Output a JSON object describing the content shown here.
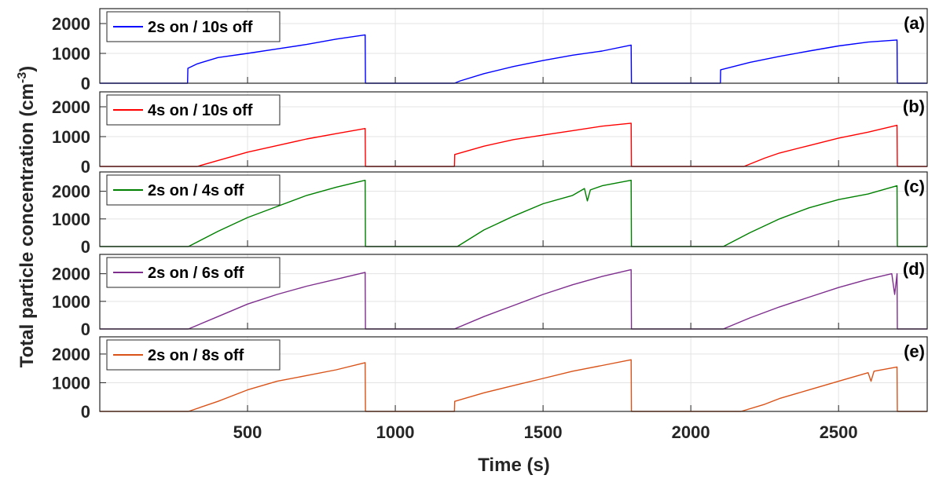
{
  "chart_data": {
    "type": "line",
    "xlabel": "Time (s)",
    "ylabel_main": "Total particle concentration (cm",
    "ylabel_sup": "-3",
    "ylabel_close": ")",
    "xlim": [
      0,
      2800
    ],
    "xticks": [
      500,
      1000,
      1500,
      2000,
      2500
    ],
    "grid": true,
    "legend_position": "top-left",
    "panels": [
      {
        "tag": "(a)",
        "series_name": "2s on / 10s off",
        "color": "#0000ff",
        "ylim": [
          0,
          2500
        ],
        "yticks": [
          0,
          1000,
          2000
        ],
        "points": [
          [
            0,
            0
          ],
          [
            297,
            0
          ],
          [
            298,
            500
          ],
          [
            330,
            650
          ],
          [
            400,
            860
          ],
          [
            500,
            1000
          ],
          [
            600,
            1150
          ],
          [
            700,
            1300
          ],
          [
            800,
            1480
          ],
          [
            898,
            1620
          ],
          [
            899,
            0
          ],
          [
            1200,
            0
          ],
          [
            1220,
            80
          ],
          [
            1300,
            320
          ],
          [
            1400,
            560
          ],
          [
            1500,
            760
          ],
          [
            1600,
            940
          ],
          [
            1700,
            1080
          ],
          [
            1798,
            1280
          ],
          [
            1799,
            0
          ],
          [
            2100,
            0
          ],
          [
            2101,
            450
          ],
          [
            2200,
            700
          ],
          [
            2300,
            900
          ],
          [
            2400,
            1080
          ],
          [
            2500,
            1250
          ],
          [
            2600,
            1380
          ],
          [
            2698,
            1450
          ],
          [
            2699,
            0
          ],
          [
            2800,
            0
          ]
        ]
      },
      {
        "tag": "(b)",
        "series_name": "4s on / 10s off",
        "color": "#ff0000",
        "ylim": [
          0,
          2500
        ],
        "yticks": [
          0,
          1000,
          2000
        ],
        "points": [
          [
            0,
            0
          ],
          [
            330,
            0
          ],
          [
            400,
            200
          ],
          [
            500,
            480
          ],
          [
            600,
            700
          ],
          [
            700,
            920
          ],
          [
            800,
            1100
          ],
          [
            898,
            1270
          ],
          [
            899,
            0
          ],
          [
            1200,
            0
          ],
          [
            1201,
            400
          ],
          [
            1300,
            680
          ],
          [
            1400,
            900
          ],
          [
            1500,
            1050
          ],
          [
            1600,
            1200
          ],
          [
            1700,
            1350
          ],
          [
            1798,
            1450
          ],
          [
            1799,
            0
          ],
          [
            2180,
            0
          ],
          [
            2250,
            280
          ],
          [
            2300,
            450
          ],
          [
            2400,
            700
          ],
          [
            2500,
            950
          ],
          [
            2600,
            1150
          ],
          [
            2698,
            1380
          ],
          [
            2699,
            0
          ],
          [
            2800,
            0
          ]
        ]
      },
      {
        "tag": "(c)",
        "series_name": "2s on / 4s off",
        "color": "#008000",
        "ylim": [
          0,
          2700
        ],
        "yticks": [
          0,
          1000,
          2000
        ],
        "points": [
          [
            0,
            0
          ],
          [
            300,
            0
          ],
          [
            400,
            550
          ],
          [
            500,
            1050
          ],
          [
            600,
            1450
          ],
          [
            700,
            1850
          ],
          [
            800,
            2150
          ],
          [
            898,
            2400
          ],
          [
            899,
            0
          ],
          [
            1210,
            0
          ],
          [
            1300,
            600
          ],
          [
            1400,
            1100
          ],
          [
            1500,
            1550
          ],
          [
            1600,
            1850
          ],
          [
            1640,
            2100
          ],
          [
            1650,
            1650
          ],
          [
            1660,
            2050
          ],
          [
            1700,
            2200
          ],
          [
            1798,
            2400
          ],
          [
            1799,
            0
          ],
          [
            2110,
            0
          ],
          [
            2200,
            500
          ],
          [
            2300,
            1000
          ],
          [
            2400,
            1400
          ],
          [
            2500,
            1700
          ],
          [
            2600,
            1900
          ],
          [
            2698,
            2200
          ],
          [
            2699,
            0
          ],
          [
            2800,
            0
          ]
        ]
      },
      {
        "tag": "(d)",
        "series_name": "2s on / 6s off",
        "color": "#7e2f8e",
        "ylim": [
          0,
          2700
        ],
        "yticks": [
          0,
          1000,
          2000
        ],
        "points": [
          [
            0,
            0
          ],
          [
            300,
            0
          ],
          [
            400,
            450
          ],
          [
            500,
            900
          ],
          [
            600,
            1250
          ],
          [
            700,
            1550
          ],
          [
            800,
            1800
          ],
          [
            898,
            2050
          ],
          [
            899,
            0
          ],
          [
            1200,
            0
          ],
          [
            1300,
            450
          ],
          [
            1400,
            850
          ],
          [
            1500,
            1250
          ],
          [
            1600,
            1600
          ],
          [
            1700,
            1900
          ],
          [
            1798,
            2150
          ],
          [
            1799,
            0
          ],
          [
            2110,
            0
          ],
          [
            2200,
            400
          ],
          [
            2300,
            800
          ],
          [
            2400,
            1150
          ],
          [
            2500,
            1500
          ],
          [
            2600,
            1800
          ],
          [
            2680,
            2000
          ],
          [
            2690,
            1250
          ],
          [
            2698,
            2000
          ],
          [
            2699,
            0
          ],
          [
            2800,
            0
          ]
        ]
      },
      {
        "tag": "(e)",
        "series_name": "2s on / 8s off",
        "color": "#d95319",
        "ylim": [
          0,
          2600
        ],
        "yticks": [
          0,
          1000,
          2000
        ],
        "points": [
          [
            0,
            0
          ],
          [
            300,
            0
          ],
          [
            400,
            350
          ],
          [
            500,
            750
          ],
          [
            600,
            1050
          ],
          [
            700,
            1250
          ],
          [
            800,
            1450
          ],
          [
            898,
            1700
          ],
          [
            899,
            0
          ],
          [
            1200,
            0
          ],
          [
            1201,
            350
          ],
          [
            1300,
            650
          ],
          [
            1400,
            900
          ],
          [
            1500,
            1150
          ],
          [
            1600,
            1400
          ],
          [
            1700,
            1600
          ],
          [
            1798,
            1800
          ],
          [
            1799,
            0
          ],
          [
            2170,
            0
          ],
          [
            2250,
            250
          ],
          [
            2300,
            450
          ],
          [
            2400,
            750
          ],
          [
            2500,
            1050
          ],
          [
            2600,
            1350
          ],
          [
            2610,
            1050
          ],
          [
            2620,
            1400
          ],
          [
            2698,
            1550
          ],
          [
            2699,
            0
          ],
          [
            2800,
            0
          ]
        ]
      }
    ]
  }
}
